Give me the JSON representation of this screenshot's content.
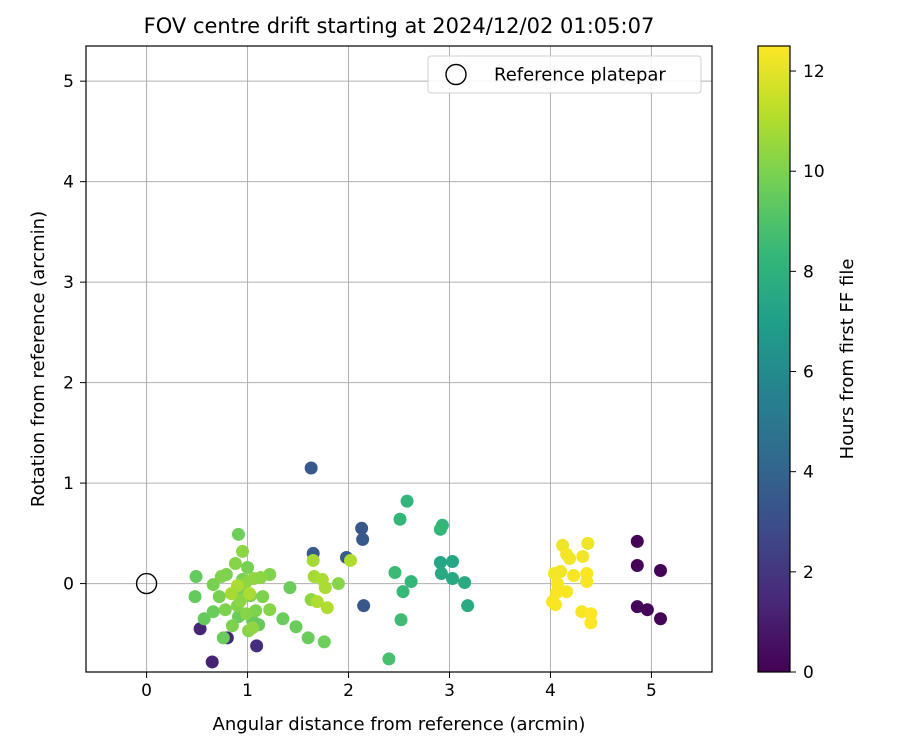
{
  "chart_data": {
    "type": "scatter",
    "title": "FOV centre drift starting at 2024/12/02 01:05:07",
    "xlabel": "Angular distance from reference (arcmin)",
    "ylabel": "Rotation from reference (arcmin)",
    "xlim": [
      -0.6,
      5.6
    ],
    "ylim": [
      -0.88,
      5.35
    ],
    "xticks": [
      "0",
      "1",
      "2",
      "3",
      "4",
      "5"
    ],
    "yticks": [
      "0",
      "1",
      "2",
      "3",
      "4",
      "5"
    ],
    "grid": true,
    "legend": {
      "placement": "top-right",
      "entries": [
        "Reference platepar"
      ]
    },
    "colorbar": {
      "label": "Hours from first FF file",
      "range": [
        0,
        12.5
      ],
      "ticks": [
        "0",
        "2",
        "4",
        "6",
        "8",
        "10",
        "12"
      ],
      "colormap": [
        "#440154",
        "#482878",
        "#3e4989",
        "#31688e",
        "#26828e",
        "#1f9e89",
        "#35b779",
        "#6ece58",
        "#b5de2b",
        "#fde725"
      ]
    },
    "reference_point": {
      "x": 0,
      "y": 0
    },
    "points": [
      {
        "x": 4.86,
        "y": 0.42,
        "h": 0.1
      },
      {
        "x": 4.86,
        "y": 0.18,
        "h": 0.1
      },
      {
        "x": 4.86,
        "y": -0.23,
        "h": 0.1
      },
      {
        "x": 4.96,
        "y": -0.26,
        "h": 0.1
      },
      {
        "x": 5.09,
        "y": 0.13,
        "h": 0.1
      },
      {
        "x": 5.09,
        "y": -0.35,
        "h": 0.1
      },
      {
        "x": 0.65,
        "y": -0.78,
        "h": 1.2
      },
      {
        "x": 0.53,
        "y": -0.45,
        "h": 1.3
      },
      {
        "x": 0.8,
        "y": -0.54,
        "h": 1.4
      },
      {
        "x": 1.09,
        "y": -0.62,
        "h": 1.6
      },
      {
        "x": 1.63,
        "y": 1.15,
        "h": 3.5
      },
      {
        "x": 1.65,
        "y": 0.3,
        "h": 3.5
      },
      {
        "x": 2.13,
        "y": 0.55,
        "h": 3.4
      },
      {
        "x": 2.14,
        "y": 0.44,
        "h": 3.4
      },
      {
        "x": 1.98,
        "y": 0.26,
        "h": 3.6
      },
      {
        "x": 2.15,
        "y": -0.22,
        "h": 3.4
      },
      {
        "x": 2.91,
        "y": 0.21,
        "h": 7.4
      },
      {
        "x": 3.03,
        "y": 0.22,
        "h": 7.4
      },
      {
        "x": 2.92,
        "y": 0.1,
        "h": 7.5
      },
      {
        "x": 3.03,
        "y": 0.05,
        "h": 7.5
      },
      {
        "x": 3.15,
        "y": 0.01,
        "h": 7.6
      },
      {
        "x": 3.18,
        "y": -0.22,
        "h": 7.6
      },
      {
        "x": 2.58,
        "y": 0.82,
        "h": 8.2
      },
      {
        "x": 2.51,
        "y": 0.64,
        "h": 8.3
      },
      {
        "x": 2.93,
        "y": 0.58,
        "h": 8.2
      },
      {
        "x": 2.91,
        "y": 0.54,
        "h": 8.3
      },
      {
        "x": 2.46,
        "y": 0.11,
        "h": 8.5
      },
      {
        "x": 2.62,
        "y": 0.02,
        "h": 8.3
      },
      {
        "x": 2.54,
        "y": -0.08,
        "h": 8.4
      },
      {
        "x": 2.52,
        "y": -0.36,
        "h": 8.6
      },
      {
        "x": 2.4,
        "y": -0.75,
        "h": 8.8
      },
      {
        "x": 0.49,
        "y": 0.07,
        "h": 9.5
      },
      {
        "x": 0.48,
        "y": -0.13,
        "h": 9.5
      },
      {
        "x": 0.57,
        "y": -0.35,
        "h": 9.5
      },
      {
        "x": 0.66,
        "y": -0.28,
        "h": 9.6
      },
      {
        "x": 0.76,
        "y": -0.54,
        "h": 9.6
      },
      {
        "x": 0.91,
        "y": -0.33,
        "h": 9.6
      },
      {
        "x": 1.05,
        "y": -0.37,
        "h": 9.5
      },
      {
        "x": 1.11,
        "y": -0.41,
        "h": 9.5
      },
      {
        "x": 1.35,
        "y": -0.35,
        "h": 9.6
      },
      {
        "x": 1.48,
        "y": -0.43,
        "h": 9.6
      },
      {
        "x": 1.6,
        "y": -0.54,
        "h": 9.6
      },
      {
        "x": 1.76,
        "y": -0.58,
        "h": 9.7
      },
      {
        "x": 1.42,
        "y": -0.04,
        "h": 9.6
      },
      {
        "x": 0.91,
        "y": 0.49,
        "h": 9.7
      },
      {
        "x": 0.66,
        "y": -0.01,
        "h": 9.9
      },
      {
        "x": 0.72,
        "y": -0.13,
        "h": 9.9
      },
      {
        "x": 0.78,
        "y": -0.26,
        "h": 10.0
      },
      {
        "x": 0.85,
        "y": -0.42,
        "h": 10.0
      },
      {
        "x": 0.9,
        "y": -0.22,
        "h": 10.1
      },
      {
        "x": 0.92,
        "y": -0.06,
        "h": 9.9
      },
      {
        "x": 0.95,
        "y": 0.04,
        "h": 9.9
      },
      {
        "x": 1.0,
        "y": 0.16,
        "h": 9.9
      },
      {
        "x": 1.03,
        "y": -0.12,
        "h": 10.0
      },
      {
        "x": 1.08,
        "y": -0.27,
        "h": 10.0
      },
      {
        "x": 1.15,
        "y": -0.13,
        "h": 10.0
      },
      {
        "x": 1.22,
        "y": 0.09,
        "h": 10.1
      },
      {
        "x": 1.22,
        "y": -0.26,
        "h": 10.2
      },
      {
        "x": 1.01,
        "y": -0.47,
        "h": 10.2
      },
      {
        "x": 0.95,
        "y": 0.32,
        "h": 10.3
      },
      {
        "x": 0.88,
        "y": 0.2,
        "h": 10.2
      },
      {
        "x": 0.79,
        "y": 0.09,
        "h": 10.0
      },
      {
        "x": 0.74,
        "y": 0.07,
        "h": 10.1
      },
      {
        "x": 0.98,
        "y": 0.01,
        "h": 10.3
      },
      {
        "x": 1.06,
        "y": 0.05,
        "h": 10.4
      },
      {
        "x": 1.13,
        "y": 0.06,
        "h": 10.3
      },
      {
        "x": 0.93,
        "y": -0.17,
        "h": 10.3
      },
      {
        "x": 0.99,
        "y": -0.3,
        "h": 10.2
      },
      {
        "x": 1.05,
        "y": -0.44,
        "h": 10.4
      },
      {
        "x": 1.63,
        "y": -0.16,
        "h": 10.3
      },
      {
        "x": 1.9,
        "y": 0.0,
        "h": 10.2
      },
      {
        "x": 1.65,
        "y": 0.23,
        "h": 10.8
      },
      {
        "x": 1.66,
        "y": 0.07,
        "h": 10.8
      },
      {
        "x": 1.74,
        "y": 0.04,
        "h": 10.9
      },
      {
        "x": 1.77,
        "y": -0.04,
        "h": 10.9
      },
      {
        "x": 1.69,
        "y": -0.18,
        "h": 11.0
      },
      {
        "x": 1.79,
        "y": -0.24,
        "h": 11.0
      },
      {
        "x": 2.02,
        "y": 0.23,
        "h": 11.0
      },
      {
        "x": 0.9,
        "y": -0.02,
        "h": 10.9
      },
      {
        "x": 1.02,
        "y": -0.1,
        "h": 10.9
      },
      {
        "x": 0.84,
        "y": -0.1,
        "h": 10.8
      },
      {
        "x": 4.12,
        "y": 0.38,
        "h": 12.2
      },
      {
        "x": 4.37,
        "y": 0.4,
        "h": 12.2
      },
      {
        "x": 4.16,
        "y": 0.29,
        "h": 12.3
      },
      {
        "x": 4.19,
        "y": 0.25,
        "h": 12.3
      },
      {
        "x": 4.32,
        "y": 0.27,
        "h": 12.3
      },
      {
        "x": 4.04,
        "y": 0.1,
        "h": 12.3
      },
      {
        "x": 4.1,
        "y": 0.12,
        "h": 12.3
      },
      {
        "x": 4.23,
        "y": 0.08,
        "h": 12.4
      },
      {
        "x": 4.36,
        "y": 0.1,
        "h": 12.4
      },
      {
        "x": 4.07,
        "y": 0.0,
        "h": 12.4
      },
      {
        "x": 4.36,
        "y": 0.02,
        "h": 12.4
      },
      {
        "x": 4.06,
        "y": -0.09,
        "h": 12.4
      },
      {
        "x": 4.16,
        "y": -0.08,
        "h": 12.4
      },
      {
        "x": 4.02,
        "y": -0.18,
        "h": 12.4
      },
      {
        "x": 4.05,
        "y": -0.21,
        "h": 12.4
      },
      {
        "x": 4.31,
        "y": -0.28,
        "h": 12.4
      },
      {
        "x": 4.4,
        "y": -0.3,
        "h": 12.5
      },
      {
        "x": 4.4,
        "y": -0.39,
        "h": 12.5
      }
    ]
  }
}
